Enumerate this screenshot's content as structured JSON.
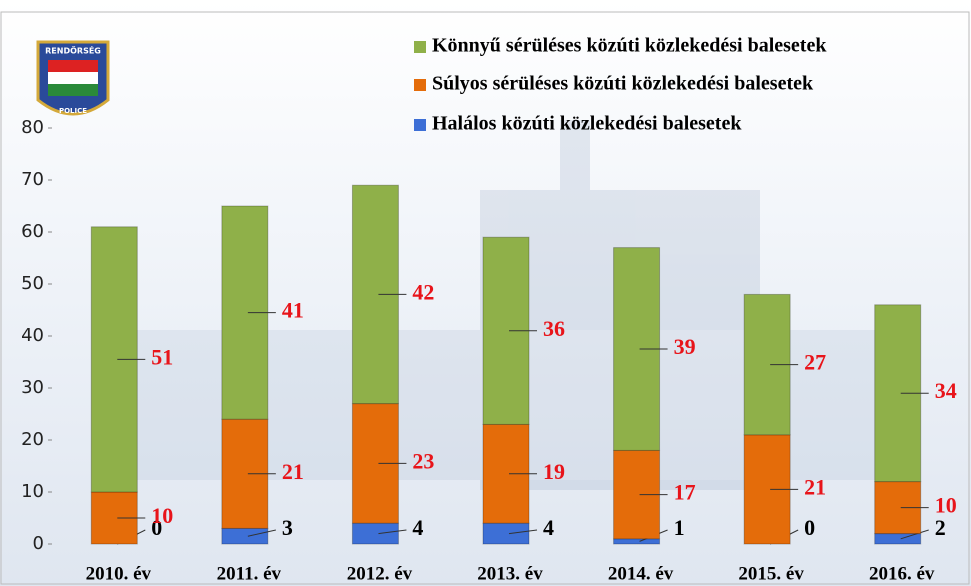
{
  "chart_data": {
    "type": "stacked_bar",
    "categories": [
      "2010. év",
      "2011. év",
      "2012. év",
      "2013. év",
      "2014. év",
      "2015. év",
      "2016. év"
    ],
    "series": [
      {
        "name": "Halálos közúti közlekedési balesetek",
        "color": "#3d6fd6",
        "label_color": "#000000",
        "values": [
          0,
          3,
          4,
          4,
          1,
          0,
          2
        ]
      },
      {
        "name": "Súlyos sérüléses közúti közlekedési balesetek",
        "color": "#e46c0a",
        "label_color": "#e8141a",
        "values": [
          10,
          21,
          23,
          19,
          17,
          21,
          10
        ]
      },
      {
        "name": "Könnyű sérüléses közúti közlekedési balesetek",
        "color": "#8fb049",
        "label_color": "#e8141a",
        "values": [
          51,
          41,
          42,
          36,
          39,
          27,
          34
        ]
      }
    ],
    "ylim": [
      0,
      80
    ],
    "yticks": [
      0,
      10,
      20,
      30,
      40,
      50,
      60,
      70,
      80
    ],
    "logo_texts": [
      "RENDŐRSÉG",
      "POLICE"
    ]
  }
}
